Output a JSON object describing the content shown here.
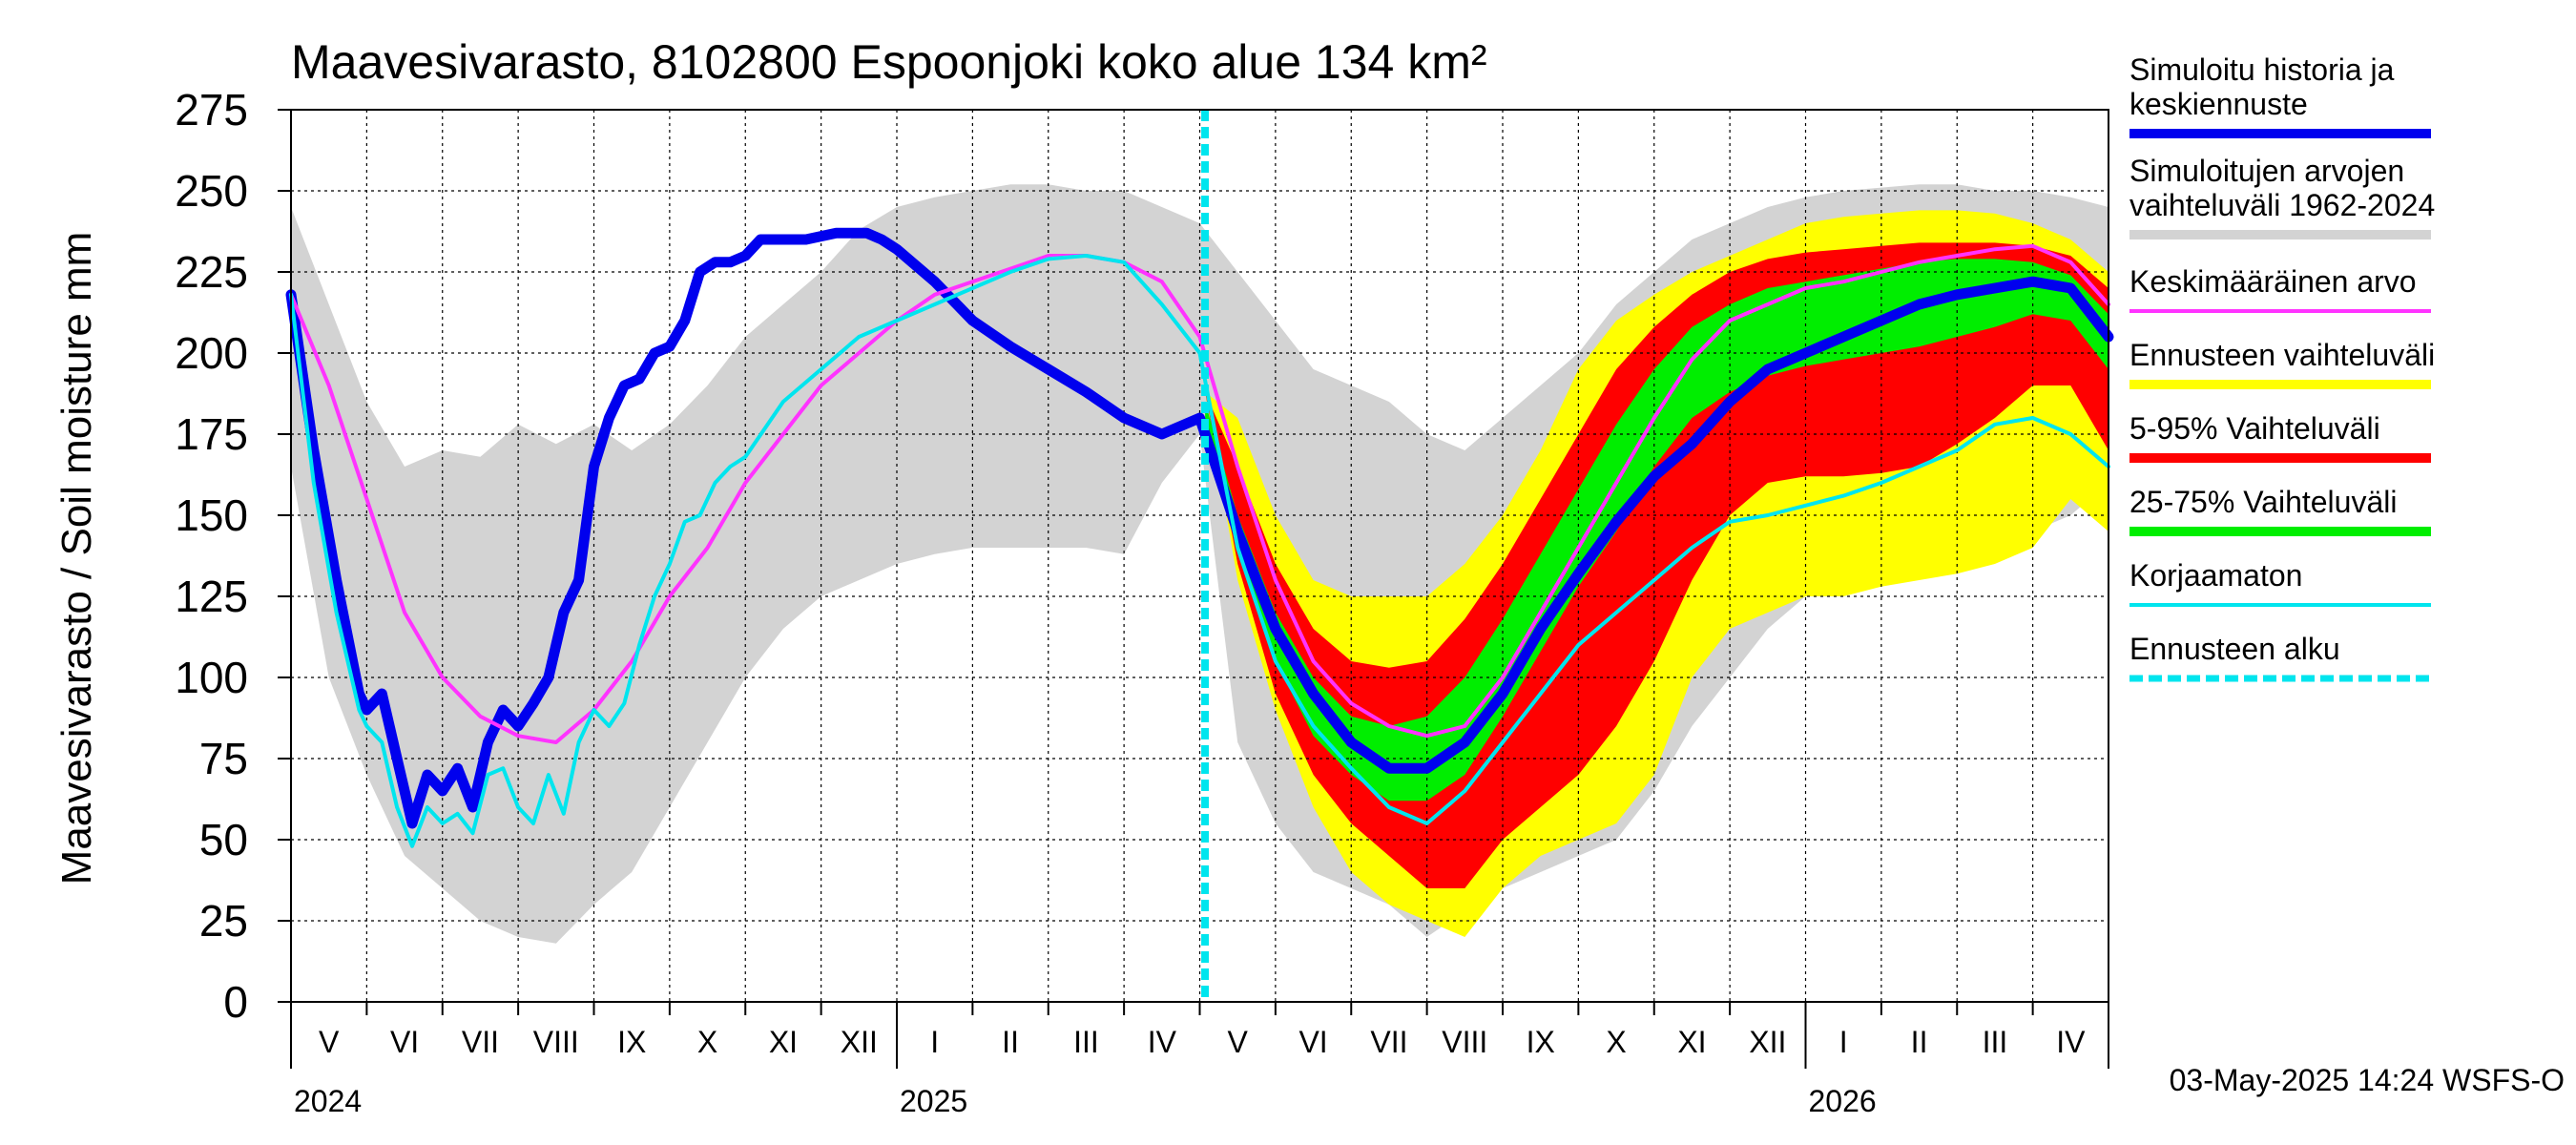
{
  "chart_data": {
    "type": "area",
    "title": "Maavesivarasto, 8102800 Espoonjoki koko alue 134 km²",
    "ylabel": "Maavesivarasto / Soil moisture   mm",
    "ylim": [
      0,
      275
    ],
    "y_ticks": [
      0,
      25,
      50,
      75,
      100,
      125,
      150,
      175,
      200,
      225,
      250,
      275
    ],
    "grid": true,
    "legend_position": "right",
    "footer": "03-May-2025 14:24 WSFS-O",
    "x_unit": "month index (0 = 1 May 2024)",
    "xlim": [
      0,
      24
    ],
    "forecast_start": 12.07,
    "month_labels": [
      {
        "label": "V",
        "x": 0.5
      },
      {
        "label": "VI",
        "x": 1.5
      },
      {
        "label": "VII",
        "x": 2.5
      },
      {
        "label": "VIII",
        "x": 3.5
      },
      {
        "label": "IX",
        "x": 4.5
      },
      {
        "label": "X",
        "x": 5.5
      },
      {
        "label": "XI",
        "x": 6.5
      },
      {
        "label": "XII",
        "x": 7.5
      },
      {
        "label": "I",
        "x": 8.5
      },
      {
        "label": "II",
        "x": 9.5
      },
      {
        "label": "III",
        "x": 10.5
      },
      {
        "label": "IV",
        "x": 11.5
      },
      {
        "label": "V",
        "x": 12.5
      },
      {
        "label": "VI",
        "x": 13.5
      },
      {
        "label": "VII",
        "x": 14.5
      },
      {
        "label": "VIII",
        "x": 15.5
      },
      {
        "label": "IX",
        "x": 16.5
      },
      {
        "label": "X",
        "x": 17.5
      },
      {
        "label": "XI",
        "x": 18.5
      },
      {
        "label": "XII",
        "x": 19.5
      },
      {
        "label": "I",
        "x": 20.5
      },
      {
        "label": "II",
        "x": 21.5
      },
      {
        "label": "III",
        "x": 22.5
      },
      {
        "label": "IV",
        "x": 23.5
      }
    ],
    "year_labels": [
      {
        "label": "2024",
        "x": 0
      },
      {
        "label": "2025",
        "x": 8
      },
      {
        "label": "2026",
        "x": 20
      }
    ],
    "year_boundaries": [
      8,
      20
    ],
    "bands": {
      "hist_range": {
        "x": [
          0,
          0.5,
          1,
          1.5,
          2,
          2.5,
          3,
          3.5,
          4,
          4.5,
          5,
          5.5,
          6,
          6.5,
          7,
          7.5,
          8,
          8.5,
          9,
          9.5,
          10,
          10.5,
          11,
          11.5,
          12,
          12.5,
          13,
          13.5,
          14,
          14.5,
          15,
          15.5,
          16,
          16.5,
          17,
          17.5,
          18,
          18.5,
          19,
          19.5,
          20,
          20.5,
          21,
          21.5,
          22,
          22.5,
          23,
          23.5,
          24
        ],
        "upper": [
          245,
          215,
          185,
          165,
          170,
          168,
          178,
          172,
          178,
          170,
          178,
          190,
          205,
          215,
          225,
          238,
          245,
          248,
          250,
          252,
          252,
          250,
          250,
          245,
          240,
          225,
          210,
          195,
          190,
          185,
          175,
          170,
          180,
          190,
          200,
          215,
          225,
          235,
          240,
          245,
          248,
          250,
          251,
          252,
          252,
          250,
          250,
          248,
          245
        ],
        "lower": [
          165,
          100,
          70,
          45,
          35,
          25,
          20,
          18,
          30,
          40,
          60,
          80,
          100,
          115,
          125,
          130,
          135,
          138,
          140,
          140,
          140,
          140,
          138,
          160,
          175,
          80,
          55,
          40,
          35,
          30,
          20,
          28,
          35,
          40,
          45,
          50,
          65,
          85,
          100,
          115,
          125,
          130,
          135,
          138,
          140,
          142,
          145,
          150,
          160
        ]
      },
      "forecast_range": {
        "x": [
          12.07,
          12.5,
          13,
          13.5,
          14,
          14.5,
          15,
          15.5,
          16,
          16.5,
          17,
          17.5,
          18,
          18.5,
          19,
          19.5,
          20,
          20.5,
          21,
          21.5,
          22,
          22.5,
          23,
          23.5,
          24
        ],
        "upper": [
          188,
          180,
          150,
          130,
          125,
          125,
          125,
          135,
          150,
          170,
          195,
          210,
          218,
          225,
          230,
          235,
          240,
          242,
          243,
          244,
          244,
          243,
          240,
          235,
          225
        ],
        "lower": [
          188,
          130,
          90,
          60,
          40,
          30,
          25,
          20,
          35,
          45,
          50,
          55,
          70,
          100,
          115,
          120,
          125,
          125,
          128,
          130,
          132,
          135,
          140,
          155,
          145
        ]
      },
      "p5_95": {
        "x": [
          12.07,
          12.5,
          13,
          13.5,
          14,
          14.5,
          15,
          15.5,
          16,
          16.5,
          17,
          17.5,
          18,
          18.5,
          19,
          19.5,
          20,
          20.5,
          21,
          21.5,
          22,
          22.5,
          23,
          23.5,
          24
        ],
        "upper": [
          188,
          165,
          135,
          115,
          105,
          103,
          105,
          118,
          135,
          155,
          175,
          195,
          208,
          218,
          225,
          229,
          231,
          232,
          233,
          234,
          234,
          234,
          233,
          230,
          220
        ],
        "lower": [
          188,
          135,
          95,
          70,
          55,
          45,
          35,
          35,
          50,
          60,
          70,
          85,
          105,
          130,
          150,
          160,
          162,
          162,
          163,
          165,
          172,
          180,
          190,
          190,
          170
        ]
      },
      "p25_75": {
        "x": [
          12.07,
          12.5,
          13,
          13.5,
          14,
          14.5,
          15,
          15.5,
          16,
          16.5,
          17,
          17.5,
          18,
          18.5,
          19,
          19.5,
          20,
          20.5,
          21,
          21.5,
          22,
          22.5,
          23,
          23.5,
          24
        ],
        "upper": [
          185,
          150,
          120,
          100,
          88,
          85,
          88,
          100,
          118,
          138,
          158,
          178,
          195,
          208,
          215,
          220,
          222,
          224,
          226,
          228,
          229,
          229,
          228,
          224,
          212
        ],
        "lower": [
          180,
          140,
          105,
          82,
          70,
          62,
          62,
          70,
          88,
          108,
          128,
          145,
          165,
          180,
          188,
          193,
          196,
          198,
          200,
          202,
          205,
          208,
          212,
          210,
          195
        ]
      }
    },
    "series": [
      {
        "name": "Simuloitu historia ja keskiennuste",
        "color": "#0000ee",
        "width": 11,
        "x": [
          0,
          0.3,
          0.6,
          0.9,
          1.0,
          1.2,
          1.4,
          1.6,
          1.8,
          2.0,
          2.2,
          2.4,
          2.6,
          2.8,
          3.0,
          3.2,
          3.4,
          3.6,
          3.8,
          4.0,
          4.2,
          4.4,
          4.6,
          4.8,
          5.0,
          5.2,
          5.4,
          5.6,
          5.8,
          6.0,
          6.2,
          6.4,
          6.6,
          6.8,
          7.0,
          7.2,
          7.4,
          7.6,
          7.8,
          8.0,
          8.5,
          9.0,
          9.5,
          10.0,
          10.5,
          11.0,
          11.5,
          12.0,
          12.5,
          13.0,
          13.5,
          14.0,
          14.5,
          15.0,
          15.5,
          16.0,
          16.5,
          17.0,
          17.5,
          18.0,
          18.5,
          19.0,
          19.5,
          20.0,
          20.5,
          21.0,
          21.5,
          22.0,
          22.5,
          23.0,
          23.5,
          24.0
        ],
        "y": [
          218,
          170,
          130,
          95,
          90,
          95,
          75,
          55,
          70,
          65,
          72,
          60,
          80,
          90,
          85,
          92,
          100,
          120,
          130,
          165,
          180,
          190,
          192,
          200,
          202,
          210,
          225,
          228,
          228,
          230,
          235,
          235,
          235,
          235,
          236,
          237,
          237,
          237,
          235,
          232,
          222,
          210,
          202,
          195,
          188,
          180,
          175,
          180,
          145,
          115,
          95,
          80,
          72,
          72,
          80,
          95,
          115,
          132,
          148,
          162,
          172,
          185,
          195,
          200,
          205,
          210,
          215,
          218,
          220,
          222,
          220,
          205
        ]
      },
      {
        "name": "Keskimääräinen arvo",
        "color": "#ff33ff",
        "width": 4,
        "x": [
          0,
          0.5,
          1,
          1.5,
          2,
          2.5,
          3,
          3.5,
          4,
          4.5,
          5,
          5.5,
          6,
          6.5,
          7,
          7.5,
          8,
          8.5,
          9,
          9.5,
          10,
          10.5,
          11,
          11.5,
          12,
          12.5,
          13,
          13.5,
          14,
          14.5,
          15,
          15.5,
          16,
          16.5,
          17,
          17.5,
          18,
          18.5,
          19,
          19.5,
          20,
          20.5,
          21,
          21.5,
          22,
          22.5,
          23,
          23.5,
          24
        ],
        "y": [
          218,
          190,
          155,
          120,
          100,
          88,
          82,
          80,
          90,
          105,
          125,
          140,
          160,
          175,
          190,
          200,
          210,
          218,
          222,
          226,
          230,
          230,
          228,
          222,
          205,
          165,
          130,
          105,
          92,
          85,
          82,
          85,
          100,
          120,
          140,
          160,
          180,
          198,
          210,
          215,
          220,
          222,
          225,
          228,
          230,
          232,
          233,
          228,
          215
        ]
      },
      {
        "name": "Korjaamaton",
        "color": "#00e5ee",
        "width": 4,
        "x": [
          0,
          0.3,
          0.6,
          0.9,
          1.0,
          1.2,
          1.4,
          1.6,
          1.8,
          2.0,
          2.2,
          2.4,
          2.6,
          2.8,
          3.0,
          3.2,
          3.4,
          3.6,
          3.8,
          4.0,
          4.2,
          4.4,
          4.6,
          4.8,
          5.0,
          5.2,
          5.4,
          5.6,
          5.8,
          6.0,
          6.5,
          7.0,
          7.5,
          8.0,
          8.5,
          9.0,
          9.5,
          10.0,
          10.5,
          11.0,
          11.5,
          12.0,
          12.5,
          13.0,
          13.5,
          14.0,
          14.5,
          15.0,
          15.5,
          16.0,
          16.5,
          17.0,
          17.5,
          18.0,
          18.5,
          19.0,
          19.5,
          20.0,
          20.5,
          21.0,
          21.5,
          22.0,
          22.5,
          23.0,
          23.5,
          24.0
        ],
        "y": [
          218,
          160,
          120,
          90,
          85,
          80,
          60,
          48,
          60,
          55,
          58,
          52,
          70,
          72,
          60,
          55,
          70,
          58,
          80,
          90,
          85,
          92,
          110,
          125,
          135,
          148,
          150,
          160,
          165,
          168,
          185,
          195,
          205,
          210,
          215,
          220,
          225,
          229,
          230,
          228,
          215,
          200,
          140,
          105,
          85,
          72,
          60,
          55,
          65,
          80,
          95,
          110,
          120,
          130,
          140,
          148,
          150,
          153,
          156,
          160,
          165,
          170,
          178,
          180,
          175,
          165
        ]
      }
    ],
    "legend": [
      {
        "label": "Simuloitu historia ja keskiennuste",
        "color": "#0000ee",
        "style": "solid",
        "width": 10
      },
      {
        "label": "Simuloitujen arvojen vaihteluväli 1962-2024",
        "color": "#d3d3d3",
        "style": "solid",
        "width": 10
      },
      {
        "label": "Keskimääräinen arvo",
        "color": "#ff33ff",
        "style": "solid",
        "width": 4
      },
      {
        "label": "Ennusteen vaihteluväli",
        "color": "#ffff00",
        "style": "solid",
        "width": 10
      },
      {
        "label": "5-95% Vaihteluväli",
        "color": "#ff0000",
        "style": "solid",
        "width": 10
      },
      {
        "label": "25-75% Vaihteluväli",
        "color": "#00ee00",
        "style": "solid",
        "width": 10
      },
      {
        "label": "Korjaamaton",
        "color": "#00e5ee",
        "style": "solid",
        "width": 4
      },
      {
        "label": "Ennusteen alku",
        "color": "#00e5ee",
        "style": "dashed",
        "width": 7
      }
    ]
  }
}
